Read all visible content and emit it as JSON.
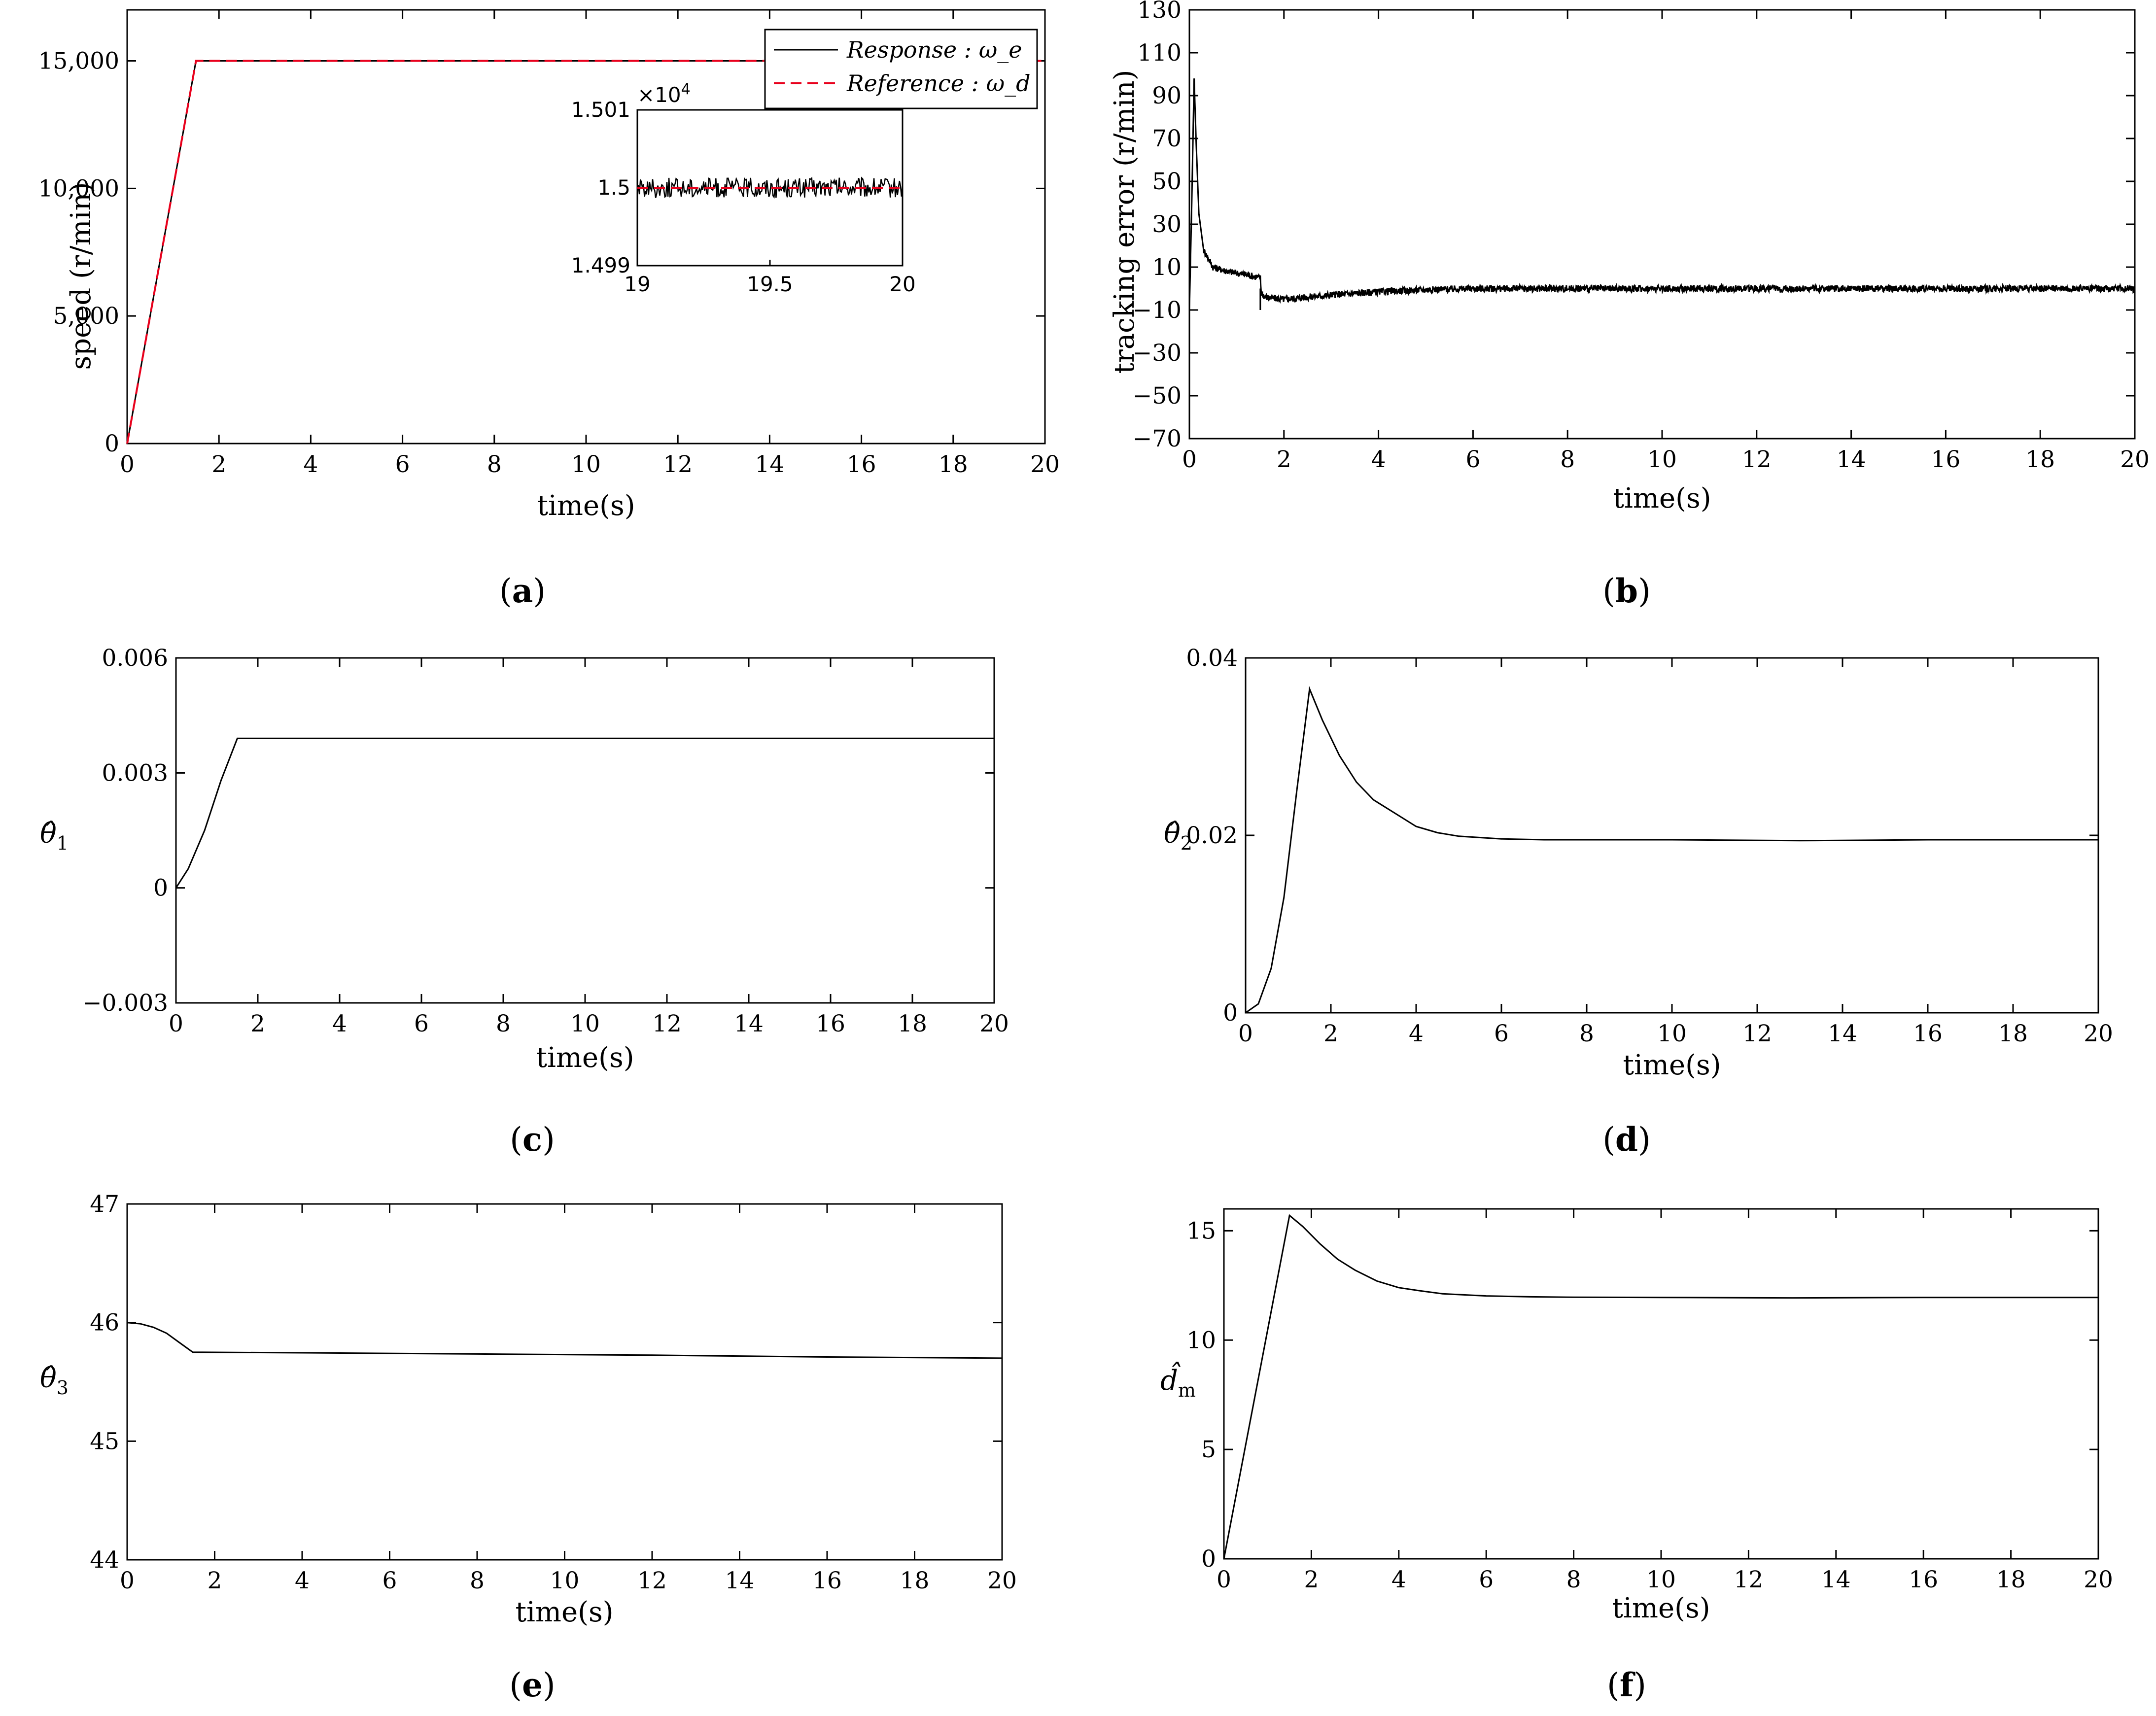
{
  "figure": {
    "panels": [
      {
        "caption_letter": "a",
        "caption_open": "(",
        "caption_close": ")"
      },
      {
        "caption_letter": "b",
        "caption_open": "(",
        "caption_close": ")"
      },
      {
        "caption_letter": "c",
        "caption_open": "(",
        "caption_close": ")"
      },
      {
        "caption_letter": "d",
        "caption_open": "(",
        "caption_close": ")"
      },
      {
        "caption_letter": "e",
        "caption_open": "(",
        "caption_close": ")"
      },
      {
        "caption_letter": "f",
        "caption_open": "(",
        "caption_close": ")"
      }
    ]
  },
  "chart_data": [
    {
      "id": "a",
      "type": "line",
      "xlabel": "time(s)",
      "ylabel": "speed (r/min)",
      "xlim": [
        0,
        20
      ],
      "ylim": [
        0,
        17000
      ],
      "xticks": [
        0,
        2,
        4,
        6,
        8,
        10,
        12,
        14,
        16,
        18,
        20
      ],
      "yticks": [
        0,
        5000,
        10000,
        15000
      ],
      "ytick_labels": [
        "0",
        "5,000",
        "10,000",
        "15,000"
      ],
      "legend": [
        "Response : ω_e",
        "Reference : ω_d"
      ],
      "series": [
        {
          "name": "Response : ω_e",
          "color": "#000000",
          "style": "solid",
          "points": [
            [
              0,
              0
            ],
            [
              1.5,
              15000
            ],
            [
              20,
              15000
            ]
          ]
        },
        {
          "name": "Reference : ω_d",
          "color": "#e8001c",
          "style": "dashed",
          "points": [
            [
              0,
              0
            ],
            [
              1.5,
              15000
            ],
            [
              20,
              15000
            ]
          ]
        }
      ],
      "inset": {
        "xlim": [
          19,
          20
        ],
        "ylim": [
          1.499,
          1.501
        ],
        "xticks": [
          19,
          19.5,
          20
        ],
        "xtick_labels": [
          "19",
          "19.5",
          "20"
        ],
        "yticks": [
          1.499,
          1.5,
          1.501
        ],
        "ytick_labels": [
          "1.499",
          "1.5",
          "1.501"
        ],
        "multiplier": "×10",
        "multiplier_exp": "4",
        "reference_level": 1.5,
        "noise_amplitude": 0.00013
      }
    },
    {
      "id": "b",
      "type": "line",
      "xlabel": "time(s)",
      "ylabel": "tracking error (r/min)",
      "xlim": [
        0,
        20
      ],
      "ylim": [
        -70,
        130
      ],
      "xticks": [
        0,
        2,
        4,
        6,
        8,
        10,
        12,
        14,
        16,
        18,
        20
      ],
      "yticks": [
        -70,
        -50,
        -30,
        -10,
        10,
        30,
        50,
        70,
        90,
        110,
        130
      ],
      "ytick_labels": [
        "−70",
        "−50",
        "−30",
        "−10",
        "10",
        "30",
        "50",
        "70",
        "90",
        "110",
        "130"
      ],
      "series": [
        {
          "name": "tracking error",
          "color": "#000000",
          "points": [
            [
              0,
              -10
            ],
            [
              0.05,
              40
            ],
            [
              0.1,
              98
            ],
            [
              0.14,
              70
            ],
            [
              0.2,
              35
            ],
            [
              0.3,
              18
            ],
            [
              0.5,
              10
            ],
            [
              0.8,
              8
            ],
            [
              1.2,
              6.5
            ],
            [
              1.5,
              5
            ],
            [
              1.52,
              -2
            ],
            [
              1.6,
              -4
            ],
            [
              2,
              -5
            ],
            [
              2.5,
              -4
            ],
            [
              3,
              -3
            ],
            [
              4,
              -1.5
            ],
            [
              5,
              -0.5
            ],
            [
              6,
              0
            ],
            [
              10,
              0
            ],
            [
              20,
              0
            ]
          ],
          "spikes": [
            [
              1.5,
              -10
            ]
          ],
          "noise_amplitude": 1.6
        }
      ]
    },
    {
      "id": "c",
      "type": "line",
      "xlabel": "time(s)",
      "ylabel": "θ̂",
      "ylabel_sub": "1",
      "xlim": [
        0,
        20
      ],
      "ylim": [
        -0.003,
        0.006
      ],
      "xticks": [
        0,
        2,
        4,
        6,
        8,
        10,
        12,
        14,
        16,
        18,
        20
      ],
      "yticks": [
        -0.003,
        0,
        0.003,
        0.006
      ],
      "ytick_labels": [
        "−0.003",
        "0",
        "0.003",
        "0.006"
      ],
      "series": [
        {
          "name": "theta1_hat",
          "color": "#000000",
          "points": [
            [
              0,
              0
            ],
            [
              0.3,
              0.0005
            ],
            [
              0.7,
              0.0015
            ],
            [
              1.1,
              0.0028
            ],
            [
              1.5,
              0.0039
            ],
            [
              20,
              0.0039
            ]
          ]
        }
      ]
    },
    {
      "id": "d",
      "type": "line",
      "xlabel": "time(s)",
      "ylabel": "θ̂",
      "ylabel_sub": "2",
      "xlim": [
        0,
        20
      ],
      "ylim": [
        0,
        0.04
      ],
      "xticks": [
        0,
        2,
        4,
        6,
        8,
        10,
        12,
        14,
        16,
        18,
        20
      ],
      "yticks": [
        0,
        0.02,
        0.04
      ],
      "ytick_labels": [
        "0",
        "0.02",
        "0.04"
      ],
      "series": [
        {
          "name": "theta2_hat",
          "color": "#000000",
          "points": [
            [
              0,
              0
            ],
            [
              0.3,
              0.001
            ],
            [
              0.6,
              0.005
            ],
            [
              0.9,
              0.013
            ],
            [
              1.2,
              0.025
            ],
            [
              1.5,
              0.0365
            ],
            [
              1.8,
              0.033
            ],
            [
              2.2,
              0.029
            ],
            [
              2.6,
              0.026
            ],
            [
              3,
              0.024
            ],
            [
              3.5,
              0.0225
            ],
            [
              4,
              0.021
            ],
            [
              4.5,
              0.0203
            ],
            [
              5,
              0.0199
            ],
            [
              6,
              0.0196
            ],
            [
              7,
              0.0195
            ],
            [
              8,
              0.0195
            ],
            [
              10,
              0.0195
            ],
            [
              13,
              0.0194
            ],
            [
              16,
              0.0195
            ],
            [
              20,
              0.0195
            ]
          ]
        }
      ]
    },
    {
      "id": "e",
      "type": "line",
      "xlabel": "time(s)",
      "ylabel": "θ̂",
      "ylabel_sub": "3",
      "xlim": [
        0,
        20
      ],
      "ylim": [
        44,
        47
      ],
      "xticks": [
        0,
        2,
        4,
        6,
        8,
        10,
        12,
        14,
        16,
        18,
        20
      ],
      "yticks": [
        44,
        45,
        46,
        47
      ],
      "ytick_labels": [
        "44",
        "45",
        "46",
        "47"
      ],
      "series": [
        {
          "name": "theta3_hat",
          "color": "#000000",
          "points": [
            [
              0,
              46
            ],
            [
              0.3,
              45.99
            ],
            [
              0.6,
              45.96
            ],
            [
              0.9,
              45.91
            ],
            [
              1.2,
              45.83
            ],
            [
              1.5,
              45.75
            ],
            [
              4,
              45.745
            ],
            [
              8,
              45.735
            ],
            [
              12,
              45.725
            ],
            [
              16,
              45.71
            ],
            [
              20,
              45.7
            ]
          ]
        }
      ]
    },
    {
      "id": "f",
      "type": "line",
      "xlabel": "time(s)",
      "ylabel": "d̂",
      "ylabel_sub": "m",
      "xlim": [
        0,
        20
      ],
      "ylim": [
        0,
        16
      ],
      "xticks": [
        0,
        2,
        4,
        6,
        8,
        10,
        12,
        14,
        16,
        18,
        20
      ],
      "yticks": [
        0,
        5,
        10,
        15
      ],
      "ytick_labels": [
        "0",
        "5",
        "10",
        "15"
      ],
      "series": [
        {
          "name": "dm_hat",
          "color": "#000000",
          "points": [
            [
              0,
              0
            ],
            [
              1.5,
              15.7
            ],
            [
              1.8,
              15.2
            ],
            [
              2.2,
              14.4
            ],
            [
              2.6,
              13.7
            ],
            [
              3,
              13.2
            ],
            [
              3.5,
              12.7
            ],
            [
              4,
              12.4
            ],
            [
              4.5,
              12.25
            ],
            [
              5,
              12.12
            ],
            [
              6,
              12.02
            ],
            [
              7,
              11.98
            ],
            [
              8,
              11.96
            ],
            [
              10,
              11.95
            ],
            [
              13,
              11.93
            ],
            [
              16,
              11.95
            ],
            [
              20,
              11.95
            ]
          ]
        }
      ]
    }
  ]
}
